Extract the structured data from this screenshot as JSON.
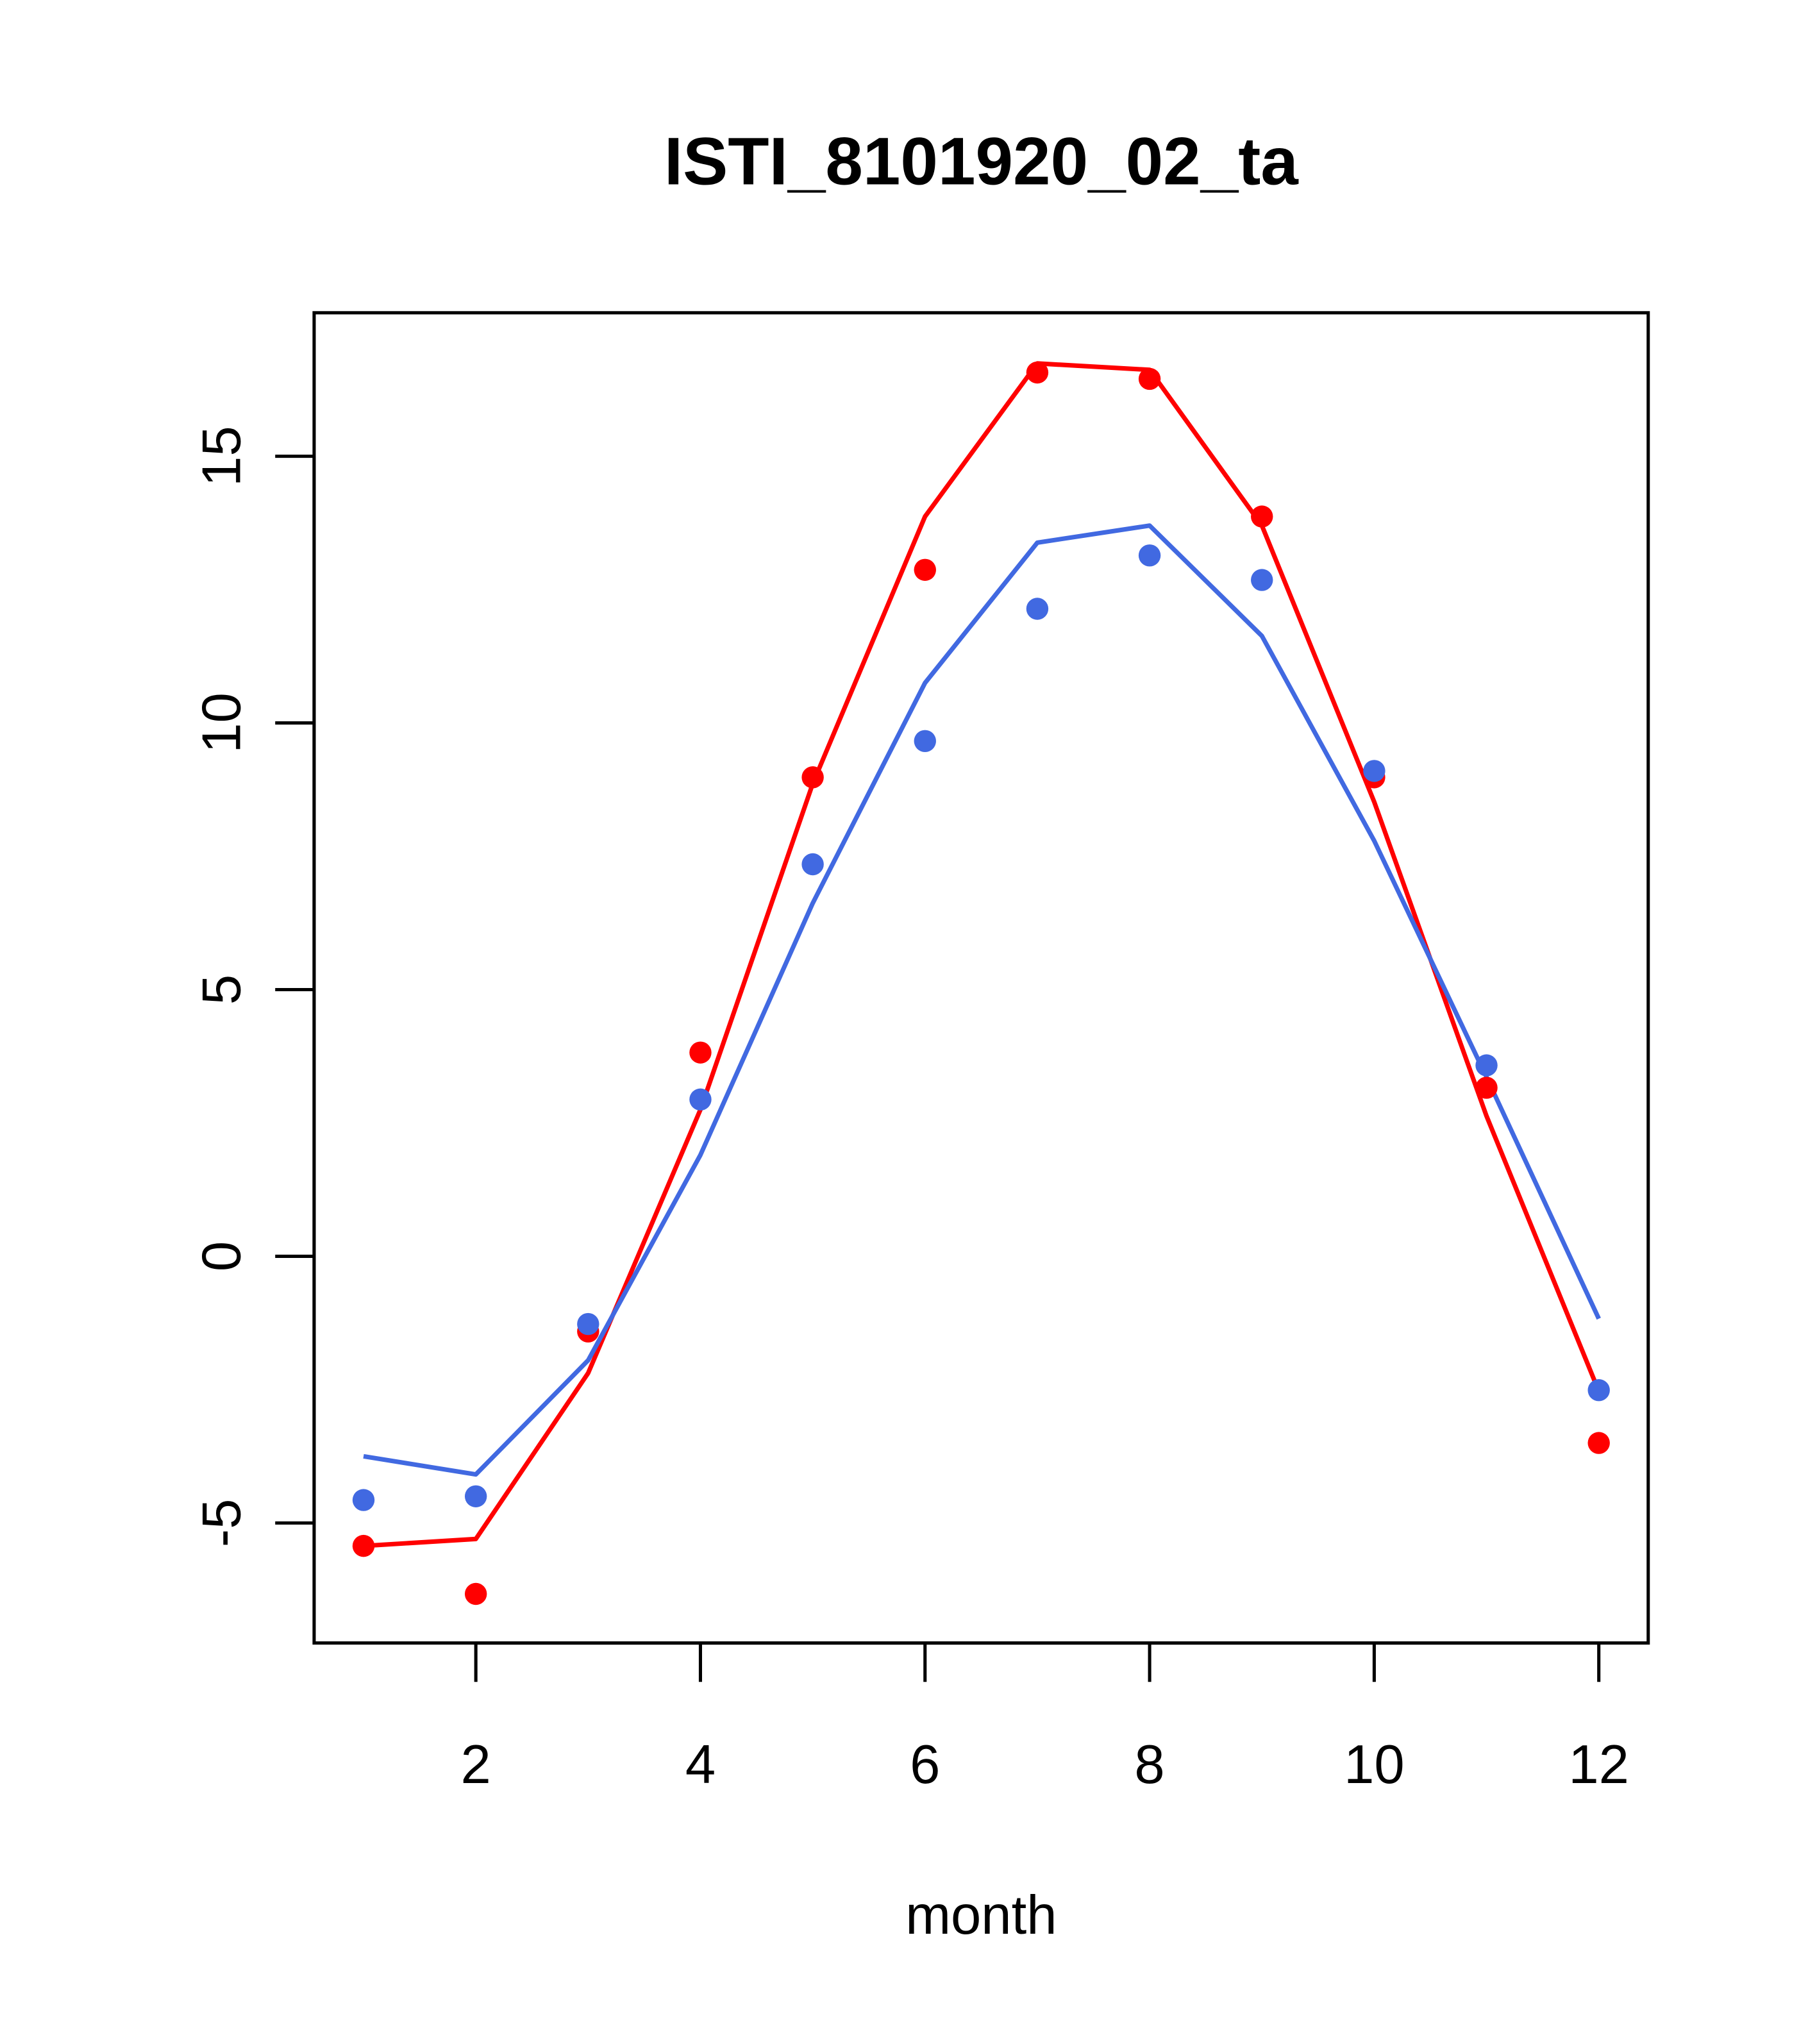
{
  "chart_data": {
    "type": "line",
    "title": "ISTI_8101920_02_ta",
    "xlabel": "month",
    "ylabel": "",
    "xlim": [
      0.56,
      12.44
    ],
    "ylim": [
      -7.25,
      17.69
    ],
    "x": [
      1,
      2,
      3,
      4,
      5,
      6,
      7,
      8,
      9,
      10,
      11,
      12
    ],
    "xticks": [
      2,
      4,
      6,
      8,
      10,
      12
    ],
    "xtick_labels": [
      "2",
      "4",
      "6",
      "8",
      "10",
      "12"
    ],
    "yticks": [
      -5,
      0,
      5,
      10,
      15
    ],
    "ytick_labels": [
      "-5",
      "0",
      "5",
      "10",
      "15"
    ],
    "grid": false,
    "series": [
      {
        "name": "red points",
        "kind": "points",
        "color": "#ff0000",
        "values": [
          -5.43,
          -6.33,
          -1.41,
          3.82,
          8.98,
          12.87,
          16.57,
          16.45,
          13.87,
          8.98,
          3.16,
          -3.5
        ]
      },
      {
        "name": "red line",
        "kind": "line",
        "color": "#ff0000",
        "values": [
          -5.43,
          -5.3,
          -2.19,
          2.75,
          8.86,
          13.87,
          16.74,
          16.62,
          13.7,
          8.52,
          2.63,
          -2.53
        ]
      },
      {
        "name": "blue points",
        "kind": "points",
        "color": "#4169e1",
        "values": [
          -4.57,
          -4.5,
          -1.27,
          2.94,
          7.35,
          9.66,
          12.14,
          13.14,
          12.68,
          9.1,
          3.58,
          -2.51
        ]
      },
      {
        "name": "blue line",
        "kind": "line",
        "color": "#4169e1",
        "values": [
          -3.75,
          -4.09,
          -1.95,
          1.9,
          6.62,
          10.75,
          13.38,
          13.7,
          11.63,
          7.79,
          3.36,
          -1.17
        ]
      }
    ]
  }
}
